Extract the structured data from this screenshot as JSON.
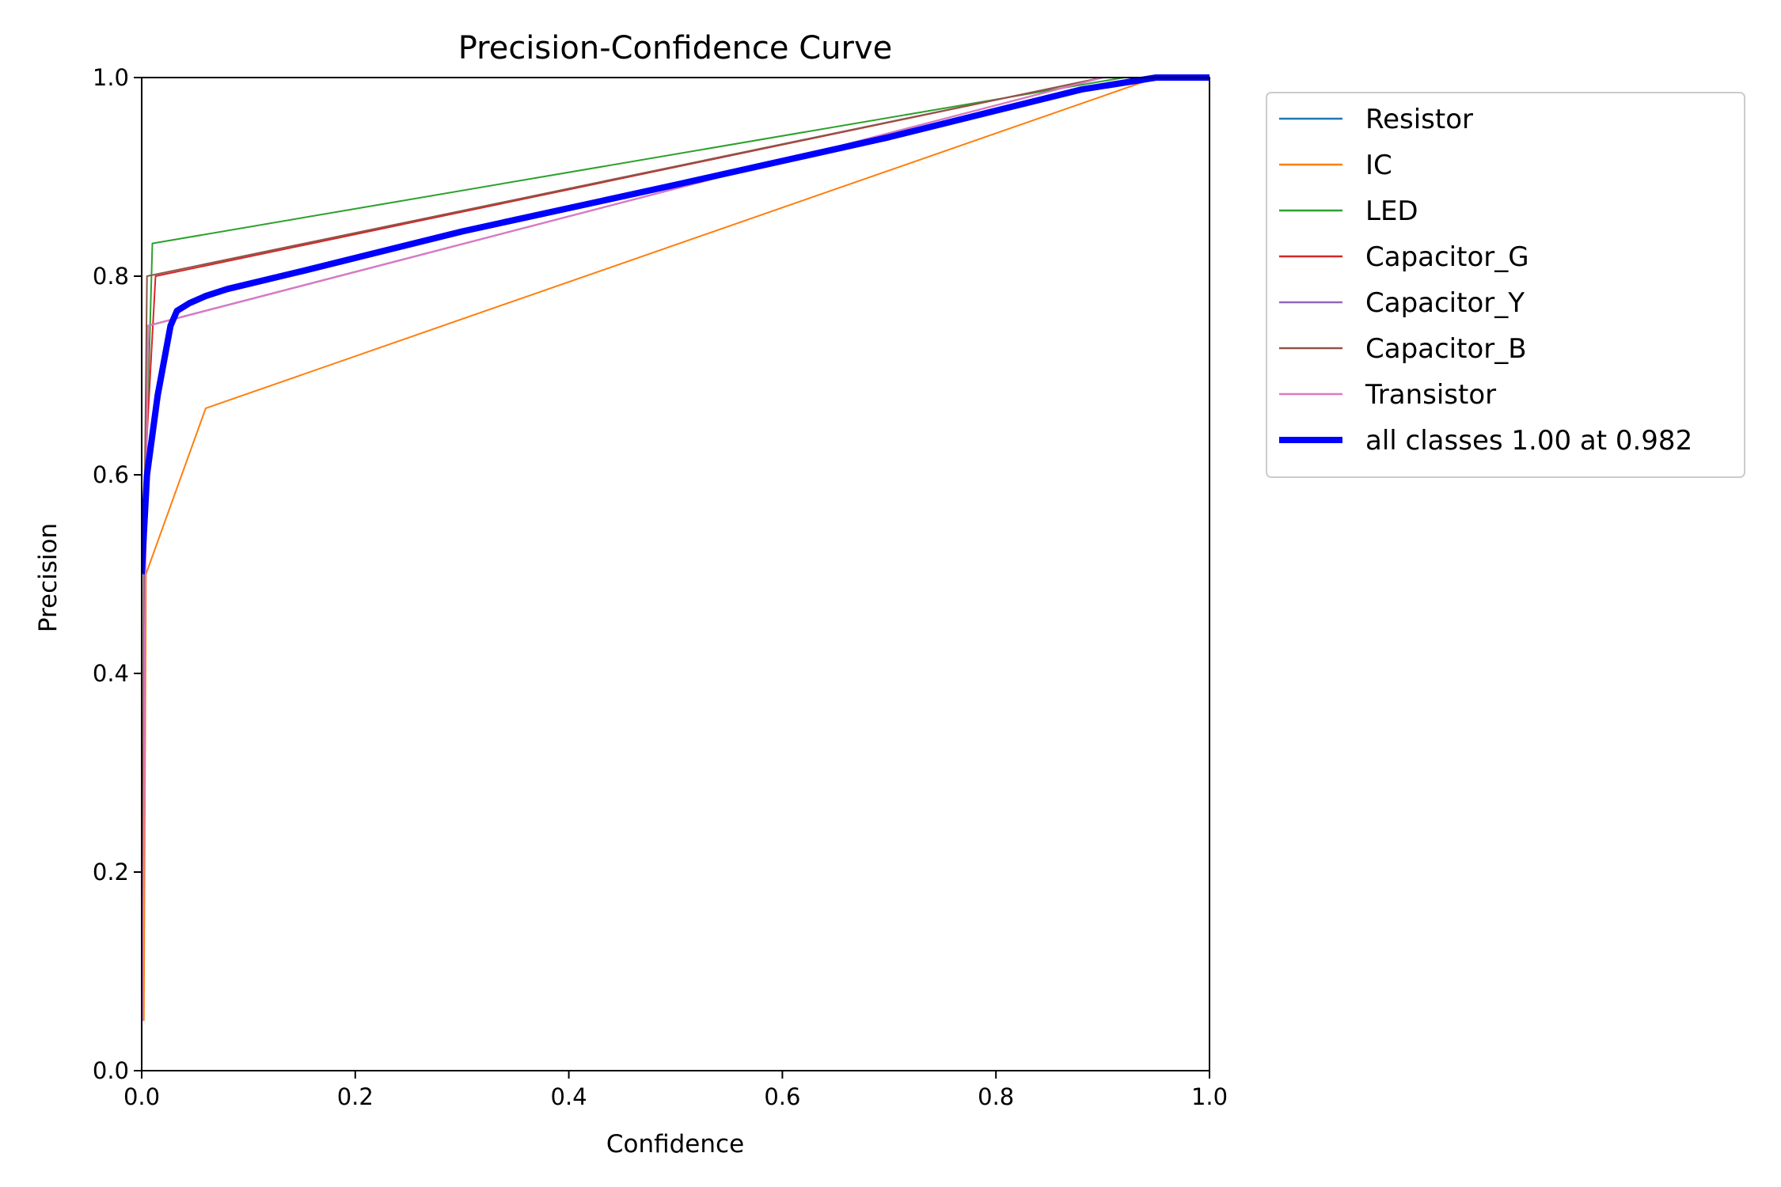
{
  "chart_data": {
    "type": "line",
    "title": "Precision-Confidence Curve",
    "xlabel": "Confidence",
    "ylabel": "Precision",
    "xlim": [
      0,
      1
    ],
    "ylim": [
      0,
      1
    ],
    "xticks": [
      "0.0",
      "0.2",
      "0.4",
      "0.6",
      "0.8",
      "1.0"
    ],
    "yticks": [
      "0.0",
      "0.2",
      "0.4",
      "0.6",
      "0.8",
      "1.0"
    ],
    "grid": false,
    "legend_position": "outside-top-right",
    "series": [
      {
        "name": "Resistor",
        "color": "#1f77b4",
        "width": 2,
        "points": [
          [
            0.001,
            0.1
          ],
          [
            0.003,
            0.5
          ],
          [
            0.006,
            0.75
          ],
          [
            0.9,
            1.0
          ],
          [
            1.0,
            1.0
          ]
        ]
      },
      {
        "name": "IC",
        "color": "#ff7f0e",
        "width": 2,
        "points": [
          [
            0.002,
            0.05
          ],
          [
            0.004,
            0.5
          ],
          [
            0.06,
            0.667
          ],
          [
            0.95,
            1.0
          ],
          [
            1.0,
            1.0
          ]
        ]
      },
      {
        "name": "LED",
        "color": "#2ca02c",
        "width": 2,
        "points": [
          [
            0.001,
            0.1
          ],
          [
            0.004,
            0.6
          ],
          [
            0.01,
            0.833
          ],
          [
            0.92,
            1.0
          ],
          [
            1.0,
            1.0
          ]
        ]
      },
      {
        "name": "Capacitor_G",
        "color": "#d62728",
        "width": 2,
        "points": [
          [
            0.001,
            0.1
          ],
          [
            0.003,
            0.6
          ],
          [
            0.013,
            0.8
          ],
          [
            0.9,
            1.0
          ],
          [
            1.0,
            1.0
          ]
        ]
      },
      {
        "name": "Capacitor_Y",
        "color": "#9467bd",
        "width": 2,
        "points": [
          [
            0.001,
            0.1
          ],
          [
            0.003,
            0.55
          ],
          [
            0.005,
            0.75
          ],
          [
            0.9,
            1.0
          ],
          [
            1.0,
            1.0
          ]
        ]
      },
      {
        "name": "Capacitor_B",
        "color": "#8c564b",
        "width": 2,
        "points": [
          [
            0.001,
            0.1
          ],
          [
            0.002,
            0.5
          ],
          [
            0.005,
            0.8
          ],
          [
            0.9,
            1.0
          ],
          [
            1.0,
            1.0
          ]
        ]
      },
      {
        "name": "Transistor",
        "color": "#e377c2",
        "width": 2,
        "points": [
          [
            0.001,
            0.05
          ],
          [
            0.003,
            0.44
          ],
          [
            0.006,
            0.75
          ],
          [
            0.9,
            1.0
          ],
          [
            1.0,
            1.0
          ]
        ]
      },
      {
        "name": "all classes 1.00 at 0.982",
        "color": "#0000ff",
        "width": 8,
        "points": [
          [
            0.0,
            0.5
          ],
          [
            0.005,
            0.6
          ],
          [
            0.015,
            0.68
          ],
          [
            0.027,
            0.75
          ],
          [
            0.033,
            0.765
          ],
          [
            0.045,
            0.773
          ],
          [
            0.06,
            0.78
          ],
          [
            0.08,
            0.787
          ],
          [
            0.15,
            0.805
          ],
          [
            0.3,
            0.845
          ],
          [
            0.5,
            0.892
          ],
          [
            0.7,
            0.94
          ],
          [
            0.88,
            0.988
          ],
          [
            0.95,
            1.0
          ],
          [
            1.0,
            1.0
          ]
        ]
      }
    ]
  }
}
